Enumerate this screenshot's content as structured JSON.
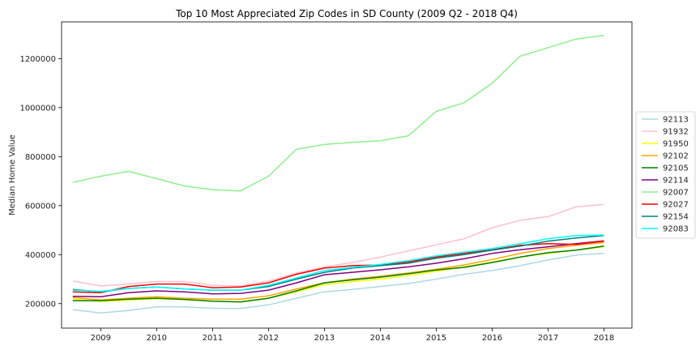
{
  "chart_data": {
    "type": "line",
    "title": "Top 10 Most Appreciated Zip Codes in SD County (2009 Q2 - 2018 Q4)",
    "xlabel": "",
    "ylabel": "Median Home Value",
    "xlim": [
      2008.3,
      2018.5
    ],
    "ylim": [
      100000,
      1350000
    ],
    "x_ticks": [
      2009,
      2010,
      2011,
      2012,
      2013,
      2014,
      2015,
      2016,
      2017,
      2018
    ],
    "x_tick_labels": [
      "2009",
      "2010",
      "2011",
      "2012",
      "2013",
      "2014",
      "2015",
      "2016",
      "2017",
      "2018"
    ],
    "y_ticks": [
      200000,
      400000,
      600000,
      800000,
      1000000,
      1200000
    ],
    "y_tick_labels": [
      "200000",
      "400000",
      "600000",
      "800000",
      "1000000",
      "1200000"
    ],
    "legend_position": "center-right",
    "grid": false,
    "x": [
      2008.5,
      2009.0,
      2009.5,
      2010.0,
      2010.5,
      2011.0,
      2011.5,
      2012.0,
      2012.5,
      2013.0,
      2013.5,
      2014.0,
      2014.5,
      2015.0,
      2015.5,
      2016.0,
      2016.5,
      2017.0,
      2017.5,
      2018.0
    ],
    "series": [
      {
        "name": "92113",
        "color": "#add8e6",
        "values": [
          175000,
          162000,
          172000,
          187000,
          187000,
          181000,
          180000,
          195000,
          222000,
          248000,
          258000,
          270000,
          282000,
          300000,
          320000,
          335000,
          355000,
          378000,
          398000,
          405000
        ]
      },
      {
        "name": "91932",
        "color": "#ffc0cb",
        "values": [
          292000,
          272000,
          280000,
          290000,
          290000,
          275000,
          272000,
          292000,
          325000,
          350000,
          368000,
          390000,
          415000,
          440000,
          465000,
          510000,
          540000,
          555000,
          595000,
          605000
        ]
      },
      {
        "name": "91950",
        "color": "#ffff00",
        "values": [
          218000,
          208000,
          215000,
          220000,
          217000,
          210000,
          206000,
          222000,
          248000,
          278000,
          290000,
          300000,
          315000,
          332000,
          350000,
          370000,
          390000,
          405000,
          418000,
          432000
        ]
      },
      {
        "name": "92102",
        "color": "#ffa500",
        "values": [
          225000,
          215000,
          222000,
          228000,
          222000,
          218000,
          218000,
          232000,
          260000,
          285000,
          300000,
          312000,
          325000,
          340000,
          358000,
          380000,
          405000,
          425000,
          438000,
          450000
        ]
      },
      {
        "name": "92105",
        "color": "#008000",
        "values": [
          212000,
          212000,
          218000,
          222000,
          217000,
          210000,
          207000,
          222000,
          252000,
          285000,
          297000,
          308000,
          322000,
          337000,
          348000,
          368000,
          390000,
          408000,
          418000,
          435000
        ]
      },
      {
        "name": "92114",
        "color": "#800080",
        "values": [
          230000,
          228000,
          245000,
          252000,
          248000,
          240000,
          242000,
          255000,
          285000,
          318000,
          328000,
          338000,
          350000,
          365000,
          383000,
          405000,
          420000,
          432000,
          445000,
          456000
        ]
      },
      {
        "name": "92007",
        "color": "#90ee90",
        "values": [
          695000,
          720000,
          740000,
          710000,
          680000,
          665000,
          660000,
          720000,
          830000,
          850000,
          858000,
          865000,
          885000,
          985000,
          1020000,
          1100000,
          1210000,
          1245000,
          1280000,
          1295000
        ]
      },
      {
        "name": "92027",
        "color": "#ff0000",
        "values": [
          248000,
          245000,
          270000,
          280000,
          280000,
          265000,
          268000,
          285000,
          320000,
          345000,
          355000,
          358000,
          370000,
          390000,
          405000,
          420000,
          438000,
          445000,
          442000,
          455000
        ]
      },
      {
        "name": "92154",
        "color": "#008080",
        "values": [
          258000,
          248000,
          262000,
          268000,
          260000,
          255000,
          255000,
          270000,
          300000,
          328000,
          345000,
          355000,
          365000,
          385000,
          400000,
          418000,
          435000,
          455000,
          468000,
          478000
        ]
      },
      {
        "name": "92083",
        "color": "#00ffff",
        "values": [
          255000,
          250000,
          262000,
          268000,
          260000,
          255000,
          255000,
          275000,
          305000,
          335000,
          348000,
          360000,
          375000,
          395000,
          410000,
          425000,
          445000,
          465000,
          478000,
          480000
        ]
      }
    ]
  }
}
